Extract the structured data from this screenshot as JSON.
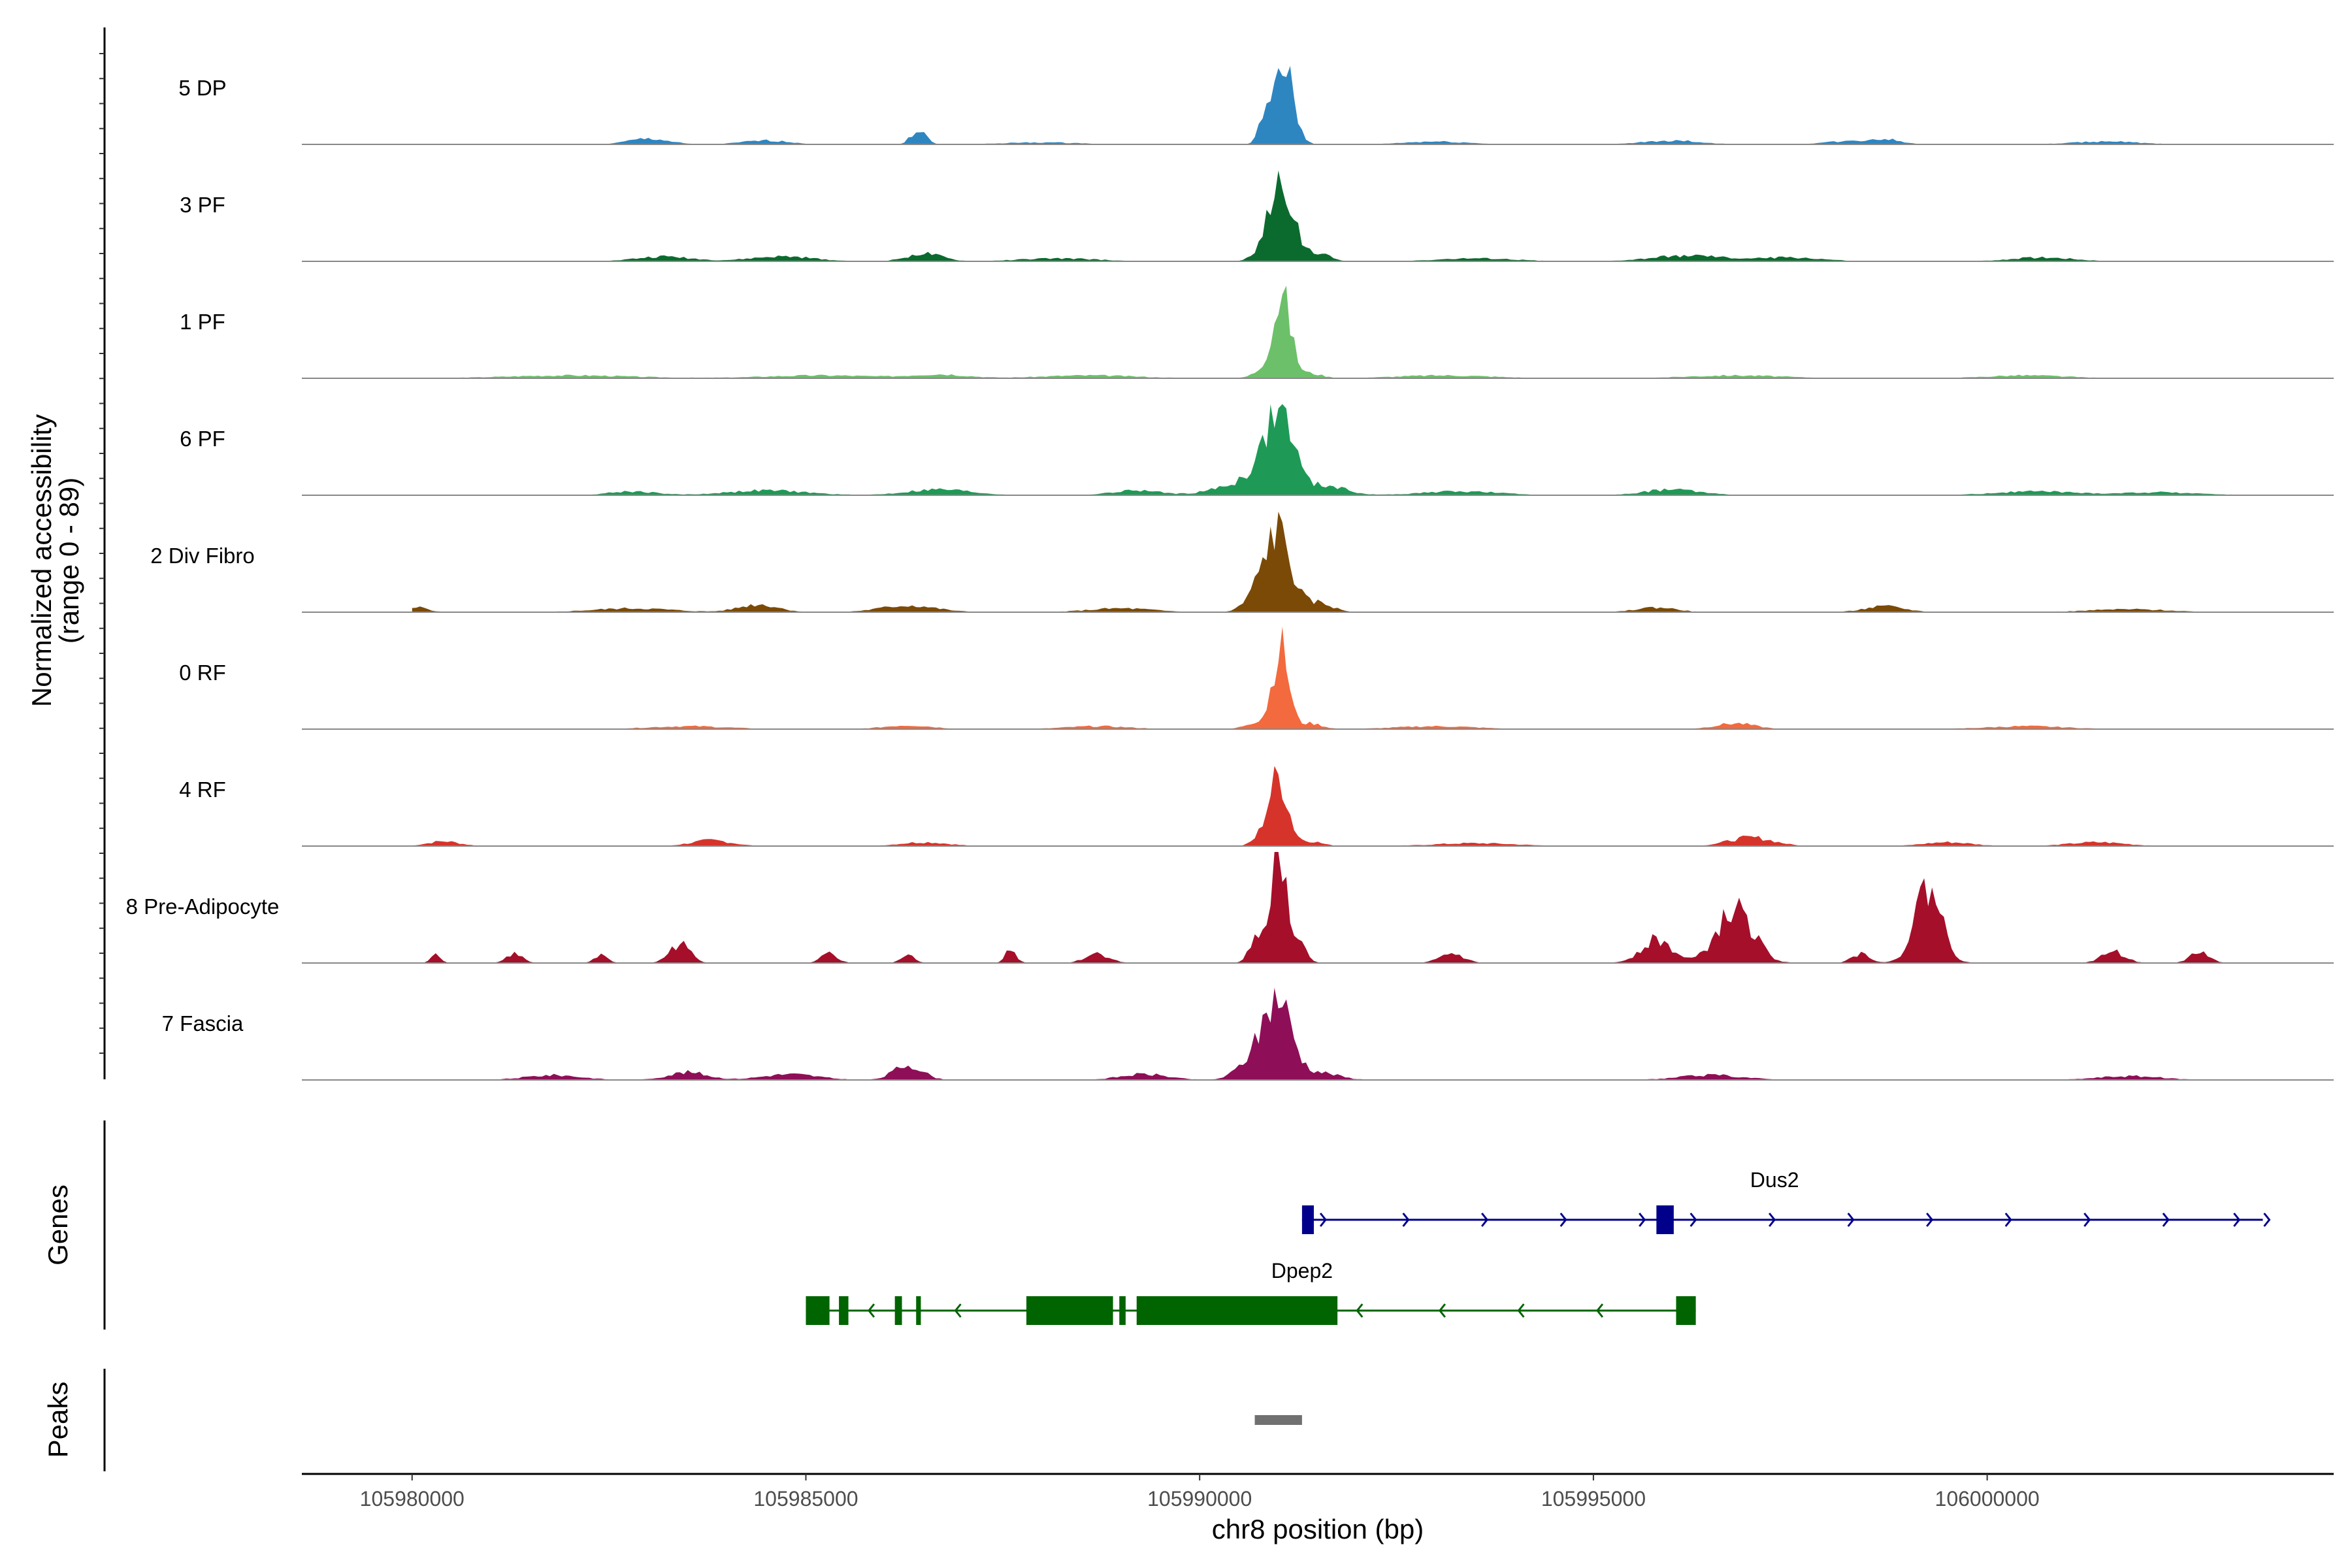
{
  "chart_data": {
    "type": "area",
    "title": "",
    "xlabel": "chr8 position (bp)",
    "ylabel": "Normalized accessibility",
    "ylabel_range": "(range 0 - 89)",
    "ylim": [
      0,
      89
    ],
    "xlim": [
      105978600,
      106004400
    ],
    "x_ticks": [
      105980000,
      105985000,
      105990000,
      105995000,
      106000000
    ],
    "x_tick_labels": [
      "105980000",
      "105985000",
      "105990000",
      "105995000",
      "106000000"
    ],
    "series": [
      {
        "name": "5 DP",
        "color": "#2E86C1",
        "peaks": [
          [
            105991050,
            85,
            130
          ],
          [
            105990790,
            14,
            60
          ],
          [
            105986430,
            16,
            90
          ],
          [
            105983000,
            6,
            250
          ],
          [
            105984500,
            4,
            300
          ],
          [
            105996000,
            4,
            350
          ],
          [
            105998700,
            5,
            200
          ],
          [
            105998200,
            3,
            300
          ],
          [
            106001500,
            3,
            400
          ],
          [
            105988000,
            2,
            500
          ],
          [
            105993000,
            3,
            400
          ]
        ]
      },
      {
        "name": "3 PF",
        "color": "#0B6B2E",
        "peaks": [
          [
            105991050,
            80,
            150
          ],
          [
            105990800,
            10,
            120
          ],
          [
            105991500,
            8,
            150
          ],
          [
            105986500,
            8,
            220
          ],
          [
            105983200,
            5,
            350
          ],
          [
            105984700,
            5,
            400
          ],
          [
            105996200,
            6,
            450
          ],
          [
            105997500,
            4,
            400
          ],
          [
            106000700,
            4,
            400
          ],
          [
            105988200,
            3,
            500
          ],
          [
            105993500,
            3,
            500
          ]
        ]
      },
      {
        "name": "1 PF",
        "color": "#6CC06A",
        "peaks": [
          [
            105991050,
            80,
            110
          ],
          [
            105990880,
            12,
            150
          ],
          [
            105991400,
            5,
            150
          ],
          [
            105985200,
            3,
            700
          ],
          [
            105982000,
            3,
            800
          ],
          [
            105986700,
            4,
            350
          ],
          [
            105988600,
            3,
            600
          ],
          [
            105993100,
            3,
            600
          ],
          [
            105996800,
            3,
            600
          ],
          [
            106000500,
            3,
            500
          ]
        ]
      },
      {
        "name": "6 PF",
        "color": "#1E9A56",
        "peaks": [
          [
            105991030,
            80,
            170
          ],
          [
            105990750,
            18,
            200
          ],
          [
            105990400,
            8,
            300
          ],
          [
            105991600,
            10,
            250
          ],
          [
            105989200,
            5,
            300
          ],
          [
            105984500,
            5,
            500
          ],
          [
            105986700,
            6,
            400
          ],
          [
            105982800,
            4,
            300
          ],
          [
            105993300,
            4,
            500
          ],
          [
            105996000,
            6,
            350
          ],
          [
            106000600,
            4,
            500
          ],
          [
            106002200,
            3,
            500
          ]
        ]
      },
      {
        "name": "2 Div Fibro",
        "color": "#7B4A06",
        "peaks": [
          [
            105991000,
            80,
            160
          ],
          [
            105990750,
            18,
            160
          ],
          [
            105991500,
            10,
            180
          ],
          [
            105984400,
            8,
            250
          ],
          [
            105986300,
            7,
            350
          ],
          [
            105982800,
            4,
            500
          ],
          [
            105980100,
            5,
            120
          ],
          [
            105989000,
            4,
            400
          ],
          [
            105995800,
            5,
            250
          ],
          [
            105998700,
            6,
            250
          ],
          [
            106001800,
            3,
            500
          ]
        ]
      },
      {
        "name": "0 RF",
        "color": "#F26A3D",
        "peaks": [
          [
            105991030,
            85,
            100
          ],
          [
            105990750,
            8,
            150
          ],
          [
            105991400,
            6,
            150
          ],
          [
            105996800,
            6,
            250
          ],
          [
            105983500,
            3,
            500
          ],
          [
            105986300,
            4,
            300
          ],
          [
            105988700,
            3,
            400
          ],
          [
            105993000,
            3,
            500
          ],
          [
            106000500,
            3,
            500
          ]
        ]
      },
      {
        "name": "4 RF",
        "color": "#D6342B",
        "peaks": [
          [
            105991000,
            70,
            120
          ],
          [
            105990800,
            8,
            120
          ],
          [
            105991400,
            5,
            150
          ],
          [
            105997000,
            9,
            280
          ],
          [
            105980400,
            5,
            200
          ],
          [
            105983800,
            6,
            250
          ],
          [
            105986500,
            4,
            300
          ],
          [
            105999500,
            4,
            300
          ],
          [
            106001400,
            4,
            350
          ],
          [
            105993500,
            3,
            500
          ]
        ]
      },
      {
        "name": "8 Pre-Adipocyte",
        "color": "#A50F2A",
        "peaks": [
          [
            105991000,
            115,
            100
          ],
          [
            105990700,
            26,
            80
          ],
          [
            105991300,
            18,
            80
          ],
          [
            105999250,
            80,
            170
          ],
          [
            105996800,
            55,
            230
          ],
          [
            105995800,
            24,
            200
          ],
          [
            105983400,
            20,
            130
          ],
          [
            105981300,
            10,
            100
          ],
          [
            105985300,
            10,
            100
          ],
          [
            105986300,
            10,
            80
          ],
          [
            105987600,
            14,
            70
          ],
          [
            105988700,
            10,
            150
          ],
          [
            105993200,
            10,
            150
          ],
          [
            105980300,
            9,
            60
          ],
          [
            105982400,
            9,
            80
          ],
          [
            106001600,
            12,
            150
          ],
          [
            106002700,
            12,
            120
          ],
          [
            105998400,
            10,
            120
          ]
        ]
      },
      {
        "name": "7 Fascia",
        "color": "#8E0F57",
        "peaks": [
          [
            105991000,
            80,
            170
          ],
          [
            105990700,
            22,
            200
          ],
          [
            105991500,
            8,
            250
          ],
          [
            105986300,
            16,
            180
          ],
          [
            105983500,
            8,
            250
          ],
          [
            105984800,
            6,
            350
          ],
          [
            105981800,
            5,
            350
          ],
          [
            105989300,
            6,
            300
          ],
          [
            105996500,
            5,
            400
          ],
          [
            106001800,
            4,
            400
          ]
        ]
      }
    ],
    "genes": [
      {
        "name": "Dus2",
        "strand": "+",
        "color": "#00008B",
        "start": 105991300,
        "end": 106003500,
        "exons": [
          [
            105991300,
            105991450
          ],
          [
            105995800,
            105996020
          ]
        ],
        "arrow_positions": [
          105991600,
          105992650,
          105993650,
          105994650,
          105995650,
          105996300,
          105997300,
          105998300,
          105999300,
          106000300,
          106001300,
          106002300,
          106003200
        ]
      },
      {
        "name": "Dpep2",
        "strand": "-",
        "color": "#006400",
        "start": 105985000,
        "end": 105996300,
        "exons": [
          [
            105985000,
            105985300
          ],
          [
            105985420,
            105985540
          ],
          [
            105986130,
            105986220
          ],
          [
            105986400,
            105986460
          ],
          [
            105987800,
            105988900
          ],
          [
            105988980,
            105989060
          ],
          [
            105989200,
            105991750
          ],
          [
            105996050,
            105996300
          ]
        ],
        "arrow_positions": [
          105985800,
          105986900,
          105992000,
          105993050,
          105994050,
          105995050
        ]
      }
    ],
    "peaks_track": [
      [
        105990700,
        105991300
      ]
    ],
    "track_titles": {
      "genes": "Genes",
      "peaks": "Peaks"
    }
  }
}
